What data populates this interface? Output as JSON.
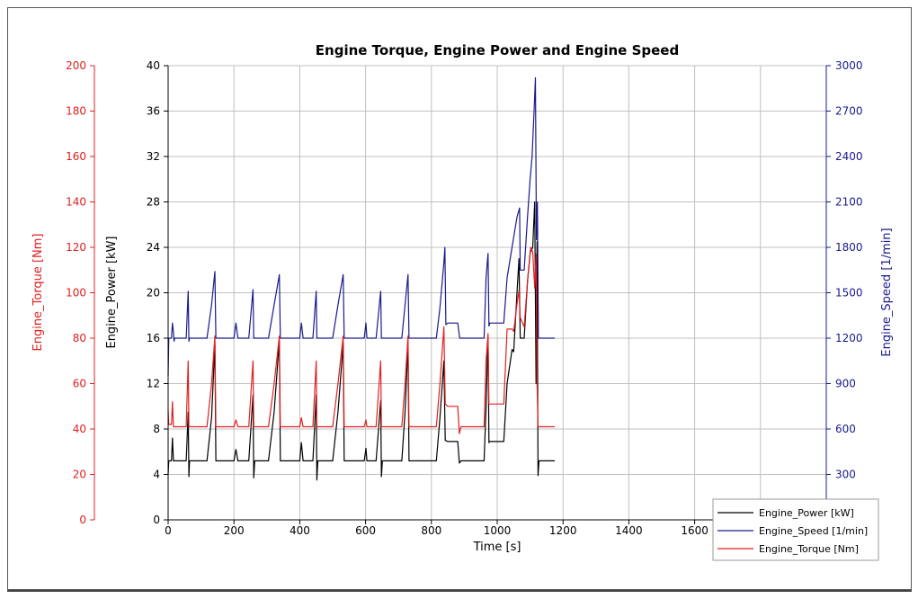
{
  "chart_data": {
    "type": "line",
    "title": "Engine Torque, Engine Power and Engine Speed",
    "xlabel": "Time [s]",
    "xlim": [
      0,
      2000
    ],
    "xticks": [
      0,
      200,
      400,
      600,
      800,
      1000,
      1200,
      1400,
      1600
    ],
    "grid": true,
    "legend_position": "bottom-right",
    "axes": {
      "torque": {
        "label": "Engine_Torque [Nm]",
        "range": [
          0,
          200
        ],
        "ticks": [
          0,
          20,
          40,
          60,
          80,
          100,
          120,
          140,
          160,
          180,
          200
        ],
        "color": "#e02020",
        "side": "left-outer"
      },
      "power": {
        "label": "Engine_Power [kW]",
        "range": [
          0,
          40
        ],
        "ticks": [
          0,
          4,
          8,
          12,
          16,
          20,
          24,
          28,
          32,
          36,
          40
        ],
        "color": "#000000",
        "side": "left"
      },
      "speed": {
        "label": "Engine_Speed [1/min]",
        "range": [
          0,
          3000
        ],
        "ticks": [
          300,
          600,
          900,
          1200,
          1500,
          1800,
          2100,
          2400,
          2700,
          3000
        ],
        "color": "#1a1a8c",
        "side": "right"
      }
    },
    "series": [
      {
        "name": "Engine_Power [kW]",
        "axis": "power",
        "color": "#000000",
        "points": [
          [
            0,
            4
          ],
          [
            2,
            5.2
          ],
          [
            10,
            5.2
          ],
          [
            13,
            7.2
          ],
          [
            16,
            5.2
          ],
          [
            55,
            5.2
          ],
          [
            61,
            9.5
          ],
          [
            63,
            3.8
          ],
          [
            65,
            5.2
          ],
          [
            118,
            5.2
          ],
          [
            132,
            9
          ],
          [
            142,
            15.5
          ],
          [
            145,
            5.2
          ],
          [
            200,
            5.2
          ],
          [
            206,
            6.2
          ],
          [
            212,
            5.2
          ],
          [
            245,
            5.2
          ],
          [
            258,
            11
          ],
          [
            260,
            3.7
          ],
          [
            263,
            5.2
          ],
          [
            305,
            5.2
          ],
          [
            322,
            9.5
          ],
          [
            338,
            15.8
          ],
          [
            341,
            5.2
          ],
          [
            400,
            5.2
          ],
          [
            405,
            6.8
          ],
          [
            410,
            5.2
          ],
          [
            440,
            5.2
          ],
          [
            450,
            11
          ],
          [
            452,
            3.5
          ],
          [
            455,
            5.2
          ],
          [
            500,
            5.2
          ],
          [
            516,
            9.5
          ],
          [
            532,
            15.5
          ],
          [
            535,
            5.2
          ],
          [
            596,
            5.2
          ],
          [
            601,
            6.3
          ],
          [
            604,
            5.2
          ],
          [
            632,
            5.2
          ],
          [
            646,
            10.5
          ],
          [
            648,
            3.8
          ],
          [
            651,
            5.2
          ],
          [
            710,
            5.2
          ],
          [
            720,
            9.5
          ],
          [
            729,
            15.5
          ],
          [
            732,
            5.2
          ],
          [
            815,
            5.2
          ],
          [
            826,
            9
          ],
          [
            838,
            14
          ],
          [
            842,
            7
          ],
          [
            850,
            6.9
          ],
          [
            880,
            6.9
          ],
          [
            885,
            5
          ],
          [
            890,
            5.2
          ],
          [
            960,
            5.2
          ],
          [
            966,
            10
          ],
          [
            972,
            16.2
          ],
          [
            975,
            6.8
          ],
          [
            978,
            6.9
          ],
          [
            1020,
            6.9
          ],
          [
            1030,
            12
          ],
          [
            1045,
            15
          ],
          [
            1050,
            14.8
          ],
          [
            1060,
            20
          ],
          [
            1066,
            23
          ],
          [
            1070,
            16
          ],
          [
            1082,
            16
          ],
          [
            1092,
            21
          ],
          [
            1100,
            23.5
          ],
          [
            1108,
            24
          ],
          [
            1114,
            28
          ],
          [
            1118,
            12
          ],
          [
            1121,
            24.5
          ],
          [
            1124,
            3.9
          ],
          [
            1127,
            5.2
          ],
          [
            1175,
            5.2
          ]
        ]
      },
      {
        "name": "Engine_Speed [1/min]",
        "axis": "speed",
        "color": "#1a1a8c",
        "points": [
          [
            0,
            950
          ],
          [
            2,
            1200
          ],
          [
            10,
            1200
          ],
          [
            13,
            1300
          ],
          [
            16,
            1240
          ],
          [
            18,
            1180
          ],
          [
            20,
            1200
          ],
          [
            55,
            1200
          ],
          [
            61,
            1510
          ],
          [
            63,
            1180
          ],
          [
            65,
            1200
          ],
          [
            118,
            1200
          ],
          [
            132,
            1420
          ],
          [
            142,
            1640
          ],
          [
            145,
            1200
          ],
          [
            200,
            1200
          ],
          [
            206,
            1300
          ],
          [
            212,
            1200
          ],
          [
            245,
            1200
          ],
          [
            258,
            1520
          ],
          [
            260,
            1200
          ],
          [
            305,
            1200
          ],
          [
            322,
            1420
          ],
          [
            338,
            1620
          ],
          [
            341,
            1200
          ],
          [
            400,
            1200
          ],
          [
            405,
            1300
          ],
          [
            410,
            1200
          ],
          [
            440,
            1200
          ],
          [
            450,
            1510
          ],
          [
            452,
            1200
          ],
          [
            500,
            1200
          ],
          [
            516,
            1420
          ],
          [
            532,
            1620
          ],
          [
            535,
            1200
          ],
          [
            596,
            1200
          ],
          [
            601,
            1300
          ],
          [
            604,
            1200
          ],
          [
            632,
            1200
          ],
          [
            646,
            1510
          ],
          [
            648,
            1200
          ],
          [
            710,
            1200
          ],
          [
            720,
            1420
          ],
          [
            729,
            1620
          ],
          [
            732,
            1200
          ],
          [
            815,
            1200
          ],
          [
            826,
            1400
          ],
          [
            838,
            1700
          ],
          [
            841,
            1800
          ],
          [
            844,
            1290
          ],
          [
            850,
            1300
          ],
          [
            880,
            1300
          ],
          [
            886,
            1200
          ],
          [
            960,
            1200
          ],
          [
            966,
            1600
          ],
          [
            972,
            1760
          ],
          [
            975,
            1280
          ],
          [
            978,
            1300
          ],
          [
            1020,
            1300
          ],
          [
            1030,
            1600
          ],
          [
            1045,
            1800
          ],
          [
            1060,
            2000
          ],
          [
            1068,
            2060
          ],
          [
            1070,
            1650
          ],
          [
            1082,
            1650
          ],
          [
            1092,
            2000
          ],
          [
            1100,
            2250
          ],
          [
            1106,
            2400
          ],
          [
            1112,
            2700
          ],
          [
            1116,
            2920
          ],
          [
            1119,
            1850
          ],
          [
            1122,
            2100
          ],
          [
            1125,
            1200
          ],
          [
            1175,
            1200
          ]
        ]
      },
      {
        "name": "Engine_Torque [Nm]",
        "axis": "torque",
        "color": "#e02020",
        "points": [
          [
            0,
            48
          ],
          [
            2,
            42
          ],
          [
            10,
            42
          ],
          [
            13,
            52
          ],
          [
            16,
            41
          ],
          [
            55,
            41
          ],
          [
            61,
            70
          ],
          [
            63,
            41
          ],
          [
            118,
            41
          ],
          [
            132,
            60
          ],
          [
            142,
            81
          ],
          [
            145,
            41
          ],
          [
            200,
            41
          ],
          [
            206,
            44
          ],
          [
            212,
            41
          ],
          [
            245,
            41
          ],
          [
            258,
            70
          ],
          [
            260,
            41
          ],
          [
            305,
            41
          ],
          [
            322,
            60
          ],
          [
            338,
            81
          ],
          [
            341,
            41
          ],
          [
            400,
            41
          ],
          [
            405,
            45
          ],
          [
            410,
            41
          ],
          [
            440,
            41
          ],
          [
            450,
            70
          ],
          [
            452,
            41
          ],
          [
            500,
            41
          ],
          [
            516,
            60
          ],
          [
            532,
            81
          ],
          [
            535,
            41
          ],
          [
            596,
            41
          ],
          [
            601,
            44
          ],
          [
            604,
            41
          ],
          [
            632,
            41
          ],
          [
            646,
            70
          ],
          [
            648,
            41
          ],
          [
            710,
            41
          ],
          [
            720,
            60
          ],
          [
            729,
            81
          ],
          [
            732,
            41
          ],
          [
            815,
            41
          ],
          [
            826,
            60
          ],
          [
            838,
            85
          ],
          [
            842,
            51
          ],
          [
            850,
            50
          ],
          [
            880,
            50
          ],
          [
            885,
            38
          ],
          [
            890,
            41
          ],
          [
            960,
            41
          ],
          [
            966,
            70
          ],
          [
            972,
            82
          ],
          [
            975,
            51
          ],
          [
            978,
            51
          ],
          [
            1020,
            51
          ],
          [
            1030,
            84
          ],
          [
            1045,
            84
          ],
          [
            1050,
            83
          ],
          [
            1060,
            95
          ],
          [
            1066,
            101
          ],
          [
            1070,
            89
          ],
          [
            1082,
            85
          ],
          [
            1092,
            105
          ],
          [
            1102,
            120
          ],
          [
            1108,
            118
          ],
          [
            1114,
            102
          ],
          [
            1118,
            117
          ],
          [
            1121,
            60
          ],
          [
            1124,
            41
          ],
          [
            1175,
            41
          ]
        ]
      }
    ]
  }
}
